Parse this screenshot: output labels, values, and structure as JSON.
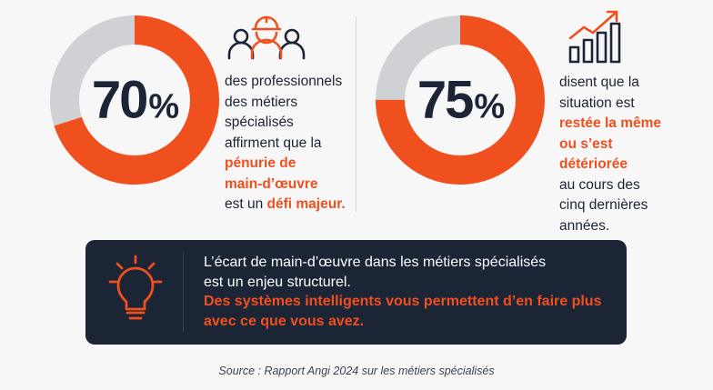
{
  "colors": {
    "accent": "#f0501e",
    "track": "#cfd1d5",
    "navy": "#1b2536"
  },
  "chart_data": [
    {
      "type": "pie",
      "values": [
        70,
        30
      ],
      "label": "70%",
      "description_lines": [
        "des professionnels",
        "des métiers",
        "spécialisés",
        "affirment que la"
      ],
      "highlight_lines": [
        "pénurie de",
        "main-d’œuvre"
      ],
      "tail_plain": "est un ",
      "tail_highlight": "défi majeur."
    },
    {
      "type": "pie",
      "values": [
        75,
        25
      ],
      "label": "75%",
      "description_lines": [
        "disent que la",
        "situation est"
      ],
      "highlight_lines": [
        "restée la même",
        "ou s’est",
        "détériorée"
      ],
      "tail_lines": [
        "au cours des",
        "cinq dernières",
        "années."
      ]
    }
  ],
  "stat1": {
    "num": "70",
    "sign": "%",
    "l1": "des professionnels",
    "l2": "des métiers",
    "l3": "spécialisés",
    "l4": "affirment que la",
    "h1": "pénurie de",
    "h2": "main-d’œuvre",
    "t_plain": "est un ",
    "t_hl": "défi majeur."
  },
  "stat2": {
    "num": "75",
    "sign": "%",
    "l1": "disent que la",
    "l2": "situation est",
    "h1": "restée la même",
    "h2": "ou s’est",
    "h3": "détériorée",
    "t1": "au cours des",
    "t2": "cinq dernières",
    "t3": "années."
  },
  "banner": {
    "icon": "lightbulb-icon",
    "line1": "L’écart de main-d’œuvre dans les métiers spécialisés",
    "line2": "est un enjeu structurel.",
    "hl1": "Des systèmes intelligents vous permettent d’en faire plus",
    "hl2": "avec ce que vous avez."
  },
  "icons": {
    "stat1": "workers-icon",
    "stat2": "growth-chart-icon"
  },
  "source": "Source : Rapport Angi 2024 sur les métiers spécialisés"
}
